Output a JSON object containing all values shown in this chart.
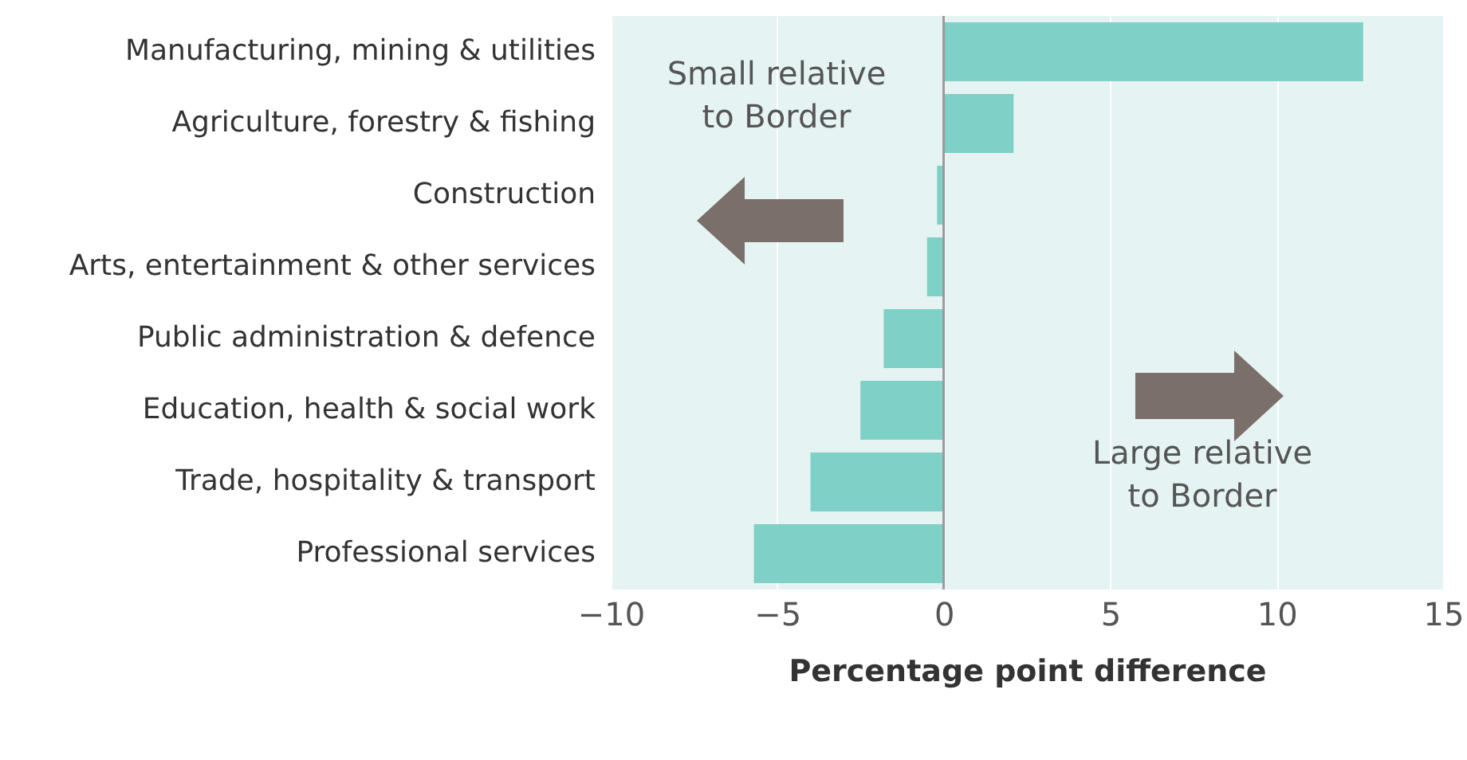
{
  "chart_data": {
    "type": "bar",
    "orientation": "horizontal",
    "xlabel": "Percentage point difference",
    "categories": [
      "Manufacturing, mining & utilities",
      "Agriculture, forestry & fishing",
      "Construction",
      "Arts, entertainment & other services",
      "Public administration & defence",
      "Education, health & social work",
      "Trade, hospitality & transport",
      "Professional services"
    ],
    "values": [
      12.6,
      2.1,
      -0.2,
      -0.5,
      -1.8,
      -2.5,
      -4.0,
      -5.7
    ],
    "color": "#7fd0c6",
    "xlim": [
      -10,
      15
    ],
    "xticks": [
      -10,
      -5,
      0,
      5,
      10,
      15
    ],
    "grid": "x",
    "ref_lines": [
      {
        "axis": "x",
        "value": 0,
        "color": "#999999"
      }
    ],
    "annotations": [
      "Small relative\nto Border",
      "Large relative\nto Border"
    ]
  }
}
